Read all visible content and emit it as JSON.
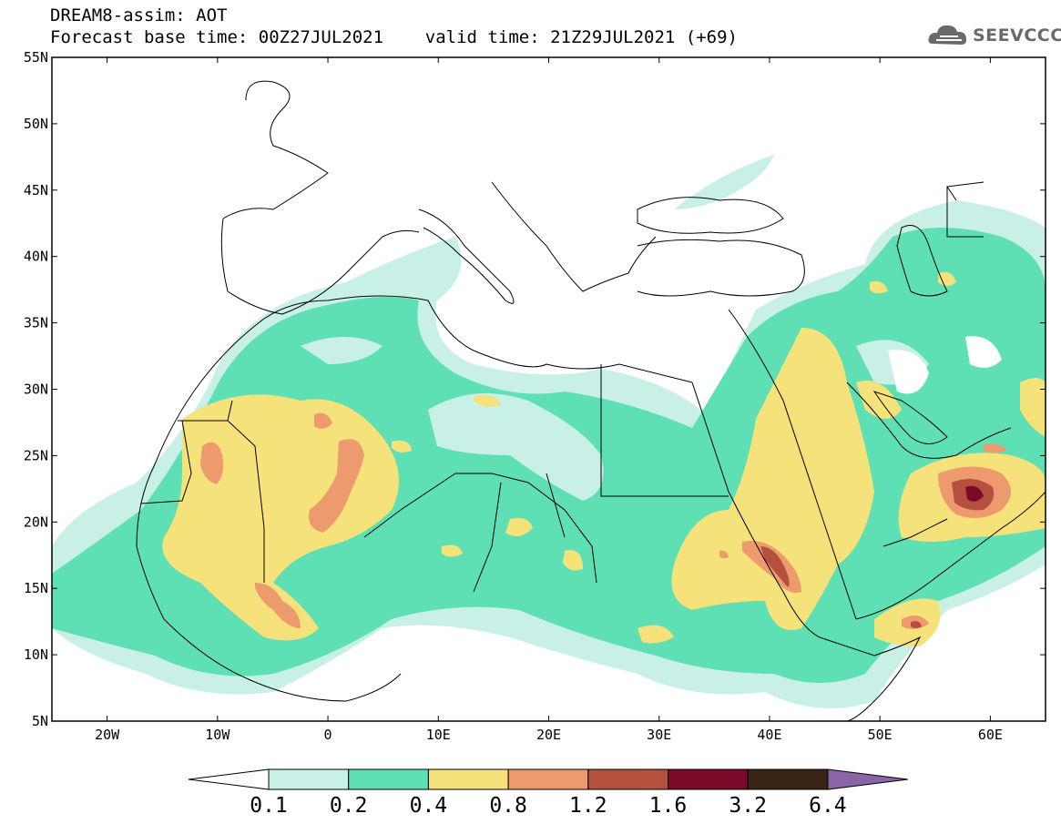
{
  "header": {
    "line1": "DREAM8-assim: AOT",
    "line2": "Forecast base time: 00Z27JUL2021    valid time: 21Z29JUL2021 (+69)"
  },
  "logo": {
    "text": "SEEVCCC",
    "icon": "cloud-icon"
  },
  "map": {
    "lat_labels": [
      "55N",
      "50N",
      "45N",
      "40N",
      "35N",
      "30N",
      "25N",
      "20N",
      "15N",
      "10N",
      "5N"
    ],
    "lon_labels": [
      "20W",
      "10W",
      "0",
      "10E",
      "20E",
      "30E",
      "40E",
      "50E",
      "60E"
    ],
    "lon_range": [
      -25,
      65
    ],
    "lat_range": [
      5,
      55
    ]
  },
  "legend": {
    "labels": [
      "0.1",
      "0.2",
      "0.4",
      "0.8",
      "1.2",
      "1.6",
      "3.2",
      "6.4"
    ],
    "colors": [
      "#c8f0e6",
      "#5ee0b4",
      "#f5e27a",
      "#ec9a6e",
      "#b4503e",
      "#7a0a28",
      "#3a2414",
      "#8c64a8"
    ]
  }
}
